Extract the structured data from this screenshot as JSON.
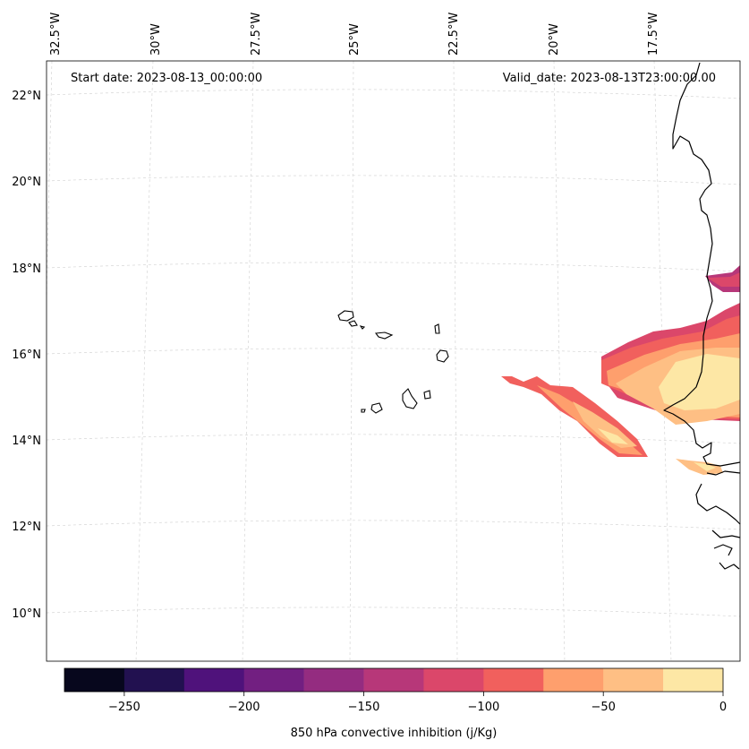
{
  "header": {
    "start_date": "Start date: 2023-08-13_00:00:00",
    "valid_date": "Valid_date: 2023-08-13T23:00:00.00"
  },
  "longitude_labels": [
    "32.5°W",
    "30°W",
    "27.5°W",
    "25°W",
    "22.5°W",
    "20°W",
    "17.5°W"
  ],
  "latitude_labels": [
    "22°N",
    "20°N",
    "18°N",
    "16°N",
    "14°N",
    "12°N",
    "10°N"
  ],
  "colorbar": {
    "label": "850 hPa convective inhibition (j/Kg)",
    "ticks": [
      "−250",
      "−200",
      "−150",
      "−100",
      "−50",
      "0"
    ],
    "levels": [
      -275,
      -250,
      -225,
      -200,
      -175,
      -150,
      -125,
      -100,
      -75,
      -50,
      -25,
      0
    ],
    "colors": [
      "#07071d",
      "#221150",
      "#4f127b",
      "#721f81",
      "#942c80",
      "#b73779",
      "#db476a",
      "#f1605d",
      "#fe9f6d",
      "#febf84",
      "#fde7a5"
    ]
  },
  "colors": {
    "grid": "#cfcfcf",
    "coastline": "#000000"
  }
}
